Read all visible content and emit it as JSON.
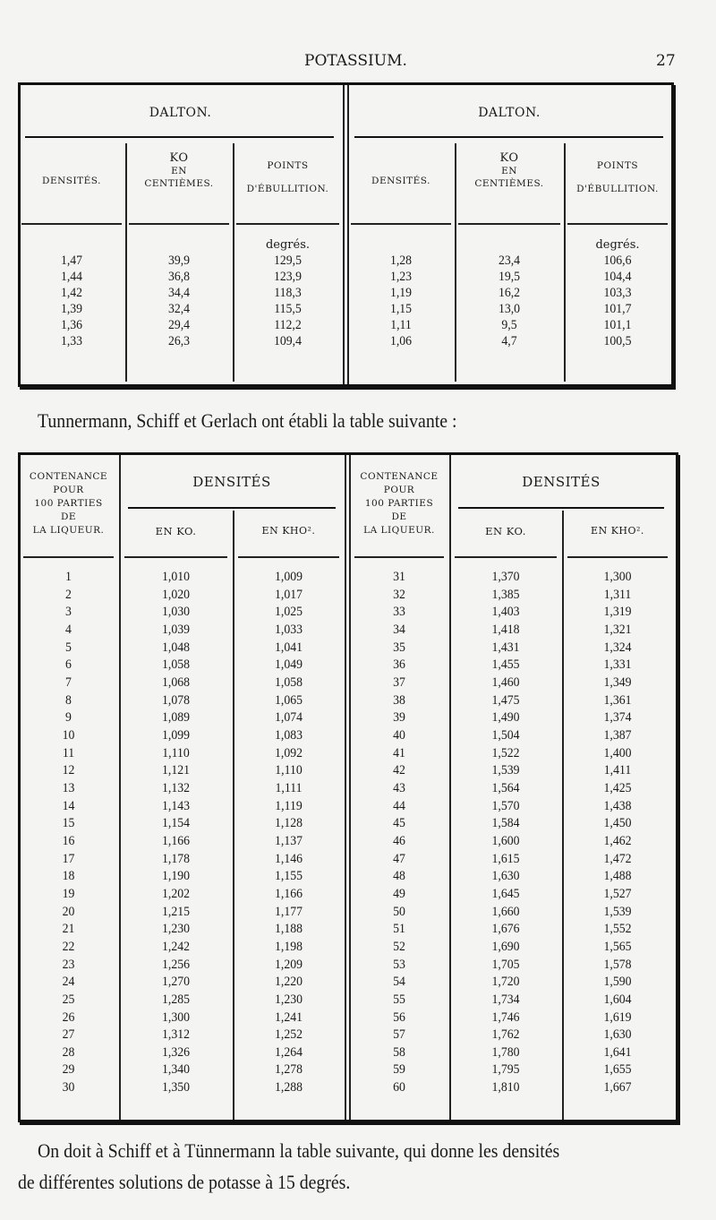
{
  "header": {
    "title": "POTASSIUM.",
    "page_number": "27"
  },
  "table1": {
    "group_label": "DALTON.",
    "columns": [
      "DENSITÉS.",
      "KO EN CENTIÈMES.",
      "POINTS D'ÉBULLITION."
    ],
    "col_lines": [
      [
        "DENSITÉS."
      ],
      [
        "KO",
        "EN",
        "CENTIÈMES."
      ],
      [
        "POINTS",
        "D'ÉBULLITION."
      ]
    ],
    "unit": "degrés.",
    "left_rows": [
      [
        "1,47",
        "39,9",
        "129,5"
      ],
      [
        "1,44",
        "36,8",
        "123,9"
      ],
      [
        "1,42",
        "34,4",
        "118,3"
      ],
      [
        "1,39",
        "32,4",
        "115,5"
      ],
      [
        "1,36",
        "29,4",
        "112,2"
      ],
      [
        "1,33",
        "26,3",
        "109,4"
      ]
    ],
    "right_rows": [
      [
        "1,28",
        "23,4",
        "106,6"
      ],
      [
        "1,23",
        "19,5",
        "104,4"
      ],
      [
        "1,19",
        "16,2",
        "103,3"
      ],
      [
        "1,15",
        "13,0",
        "101,7"
      ],
      [
        "1,11",
        "9,5",
        "101,1"
      ],
      [
        "1,06",
        "4,7",
        "100,5"
      ]
    ]
  },
  "intro_text": "Tunnermann, Schiff et Gerlach ont établi la table suivante :",
  "table2": {
    "col_contenance": [
      "CONTENANCE",
      "POUR",
      "100 PARTIES",
      "DE",
      "LA LIQUEUR."
    ],
    "group_label": "DENSITÉS",
    "col_ko": "EN KO.",
    "col_kho": "EN KHO².",
    "left_rows": [
      [
        "1",
        "1,010",
        "1,009"
      ],
      [
        "2",
        "1,020",
        "1,017"
      ],
      [
        "3",
        "1,030",
        "1,025"
      ],
      [
        "4",
        "1,039",
        "1,033"
      ],
      [
        "5",
        "1,048",
        "1,041"
      ],
      [
        "6",
        "1,058",
        "1,049"
      ],
      [
        "7",
        "1,068",
        "1,058"
      ],
      [
        "8",
        "1,078",
        "1,065"
      ],
      [
        "9",
        "1,089",
        "1,074"
      ],
      [
        "10",
        "1,099",
        "1,083"
      ],
      [
        "11",
        "1,110",
        "1,092"
      ],
      [
        "12",
        "1,121",
        "1,110"
      ],
      [
        "13",
        "1,132",
        "1,111"
      ],
      [
        "14",
        "1,143",
        "1,119"
      ],
      [
        "15",
        "1,154",
        "1,128"
      ],
      [
        "16",
        "1,166",
        "1,137"
      ],
      [
        "17",
        "1,178",
        "1,146"
      ],
      [
        "18",
        "1,190",
        "1,155"
      ],
      [
        "19",
        "1,202",
        "1,166"
      ],
      [
        "20",
        "1,215",
        "1,177"
      ],
      [
        "21",
        "1,230",
        "1,188"
      ],
      [
        "22",
        "1,242",
        "1,198"
      ],
      [
        "23",
        "1,256",
        "1,209"
      ],
      [
        "24",
        "1,270",
        "1,220"
      ],
      [
        "25",
        "1,285",
        "1,230"
      ],
      [
        "26",
        "1,300",
        "1,241"
      ],
      [
        "27",
        "1,312",
        "1,252"
      ],
      [
        "28",
        "1,326",
        "1,264"
      ],
      [
        "29",
        "1,340",
        "1,278"
      ],
      [
        "30",
        "1,350",
        "1,288"
      ]
    ],
    "right_rows": [
      [
        "31",
        "1,370",
        "1,300"
      ],
      [
        "32",
        "1,385",
        "1,311"
      ],
      [
        "33",
        "1,403",
        "1,319"
      ],
      [
        "34",
        "1,418",
        "1,321"
      ],
      [
        "35",
        "1,431",
        "1,324"
      ],
      [
        "36",
        "1,455",
        "1,331"
      ],
      [
        "37",
        "1,460",
        "1,349"
      ],
      [
        "38",
        "1,475",
        "1,361"
      ],
      [
        "39",
        "1,490",
        "1,374"
      ],
      [
        "40",
        "1,504",
        "1,387"
      ],
      [
        "41",
        "1,522",
        "1,400"
      ],
      [
        "42",
        "1,539",
        "1,411"
      ],
      [
        "43",
        "1,564",
        "1,425"
      ],
      [
        "44",
        "1,570",
        "1,438"
      ],
      [
        "45",
        "1,584",
        "1,450"
      ],
      [
        "46",
        "1,600",
        "1,462"
      ],
      [
        "47",
        "1,615",
        "1,472"
      ],
      [
        "48",
        "1,630",
        "1,488"
      ],
      [
        "49",
        "1,645",
        "1,527"
      ],
      [
        "50",
        "1,660",
        "1,539"
      ],
      [
        "51",
        "1,676",
        "1,552"
      ],
      [
        "52",
        "1,690",
        "1,565"
      ],
      [
        "53",
        "1,705",
        "1,578"
      ],
      [
        "54",
        "1,720",
        "1,590"
      ],
      [
        "55",
        "1,734",
        "1,604"
      ],
      [
        "56",
        "1,746",
        "1,619"
      ],
      [
        "57",
        "1,762",
        "1,630"
      ],
      [
        "58",
        "1,780",
        "1,641"
      ],
      [
        "59",
        "1,795",
        "1,655"
      ],
      [
        "60",
        "1,810",
        "1,667"
      ]
    ]
  },
  "closing_text": [
    "On doit à Schiff et à Tünnermann la table suivante, qui donne les densités",
    "de différentes solutions de potasse à 15 degrés."
  ]
}
